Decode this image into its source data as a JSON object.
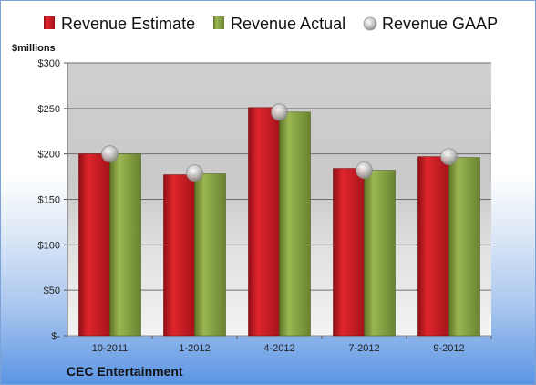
{
  "chart_data": {
    "type": "bar",
    "categories": [
      "10-2011",
      "1-2012",
      "4-2012",
      "7-2012",
      "9-2012"
    ],
    "series": [
      {
        "name": "Revenue Estimate",
        "values": [
          200,
          177,
          251,
          184,
          197
        ],
        "color": "#c0181f"
      },
      {
        "name": "Revenue Actual",
        "values": [
          200,
          178,
          246,
          182,
          196
        ],
        "color": "#7f9a3c"
      },
      {
        "name": "Revenue GAAP",
        "values": [
          200,
          179,
          246,
          182,
          197
        ],
        "color": "#bfbfbf",
        "marker": "circle"
      }
    ],
    "ylabel": "$millions",
    "ylim": [
      0,
      300
    ],
    "yticks": [
      0,
      50,
      100,
      150,
      200,
      250,
      300
    ],
    "ytick_labels": [
      "$-",
      "$50",
      "$100",
      "$150",
      "$200",
      "$250",
      "$300"
    ],
    "grid": true,
    "legend": "top",
    "footer": "CEC Entertainment"
  }
}
